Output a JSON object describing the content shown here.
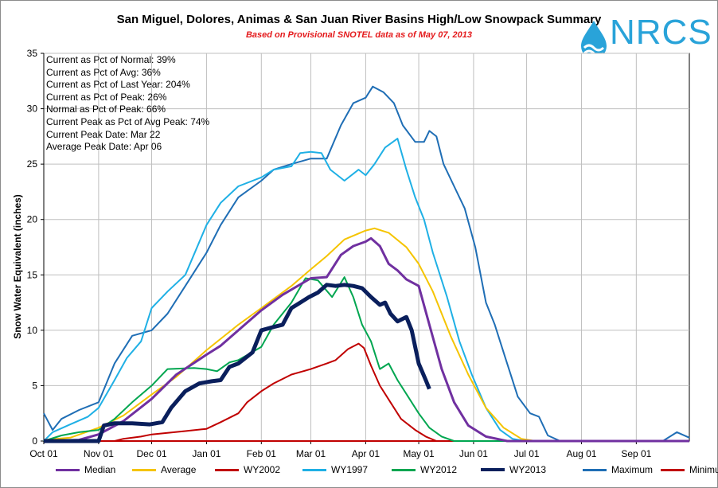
{
  "chart_data": {
    "type": "line",
    "title": "San Miguel, Dolores, Animas & San Juan River Basins High/Low Snowpack Summary",
    "subtitle": "Based on Provisional SNOTEL data as of May 07, 2013",
    "ylabel": "Snow Water Equivalent (inches)",
    "xlabel": "",
    "ylim": [
      0,
      35
    ],
    "yticks": [
      0,
      5,
      10,
      15,
      20,
      25,
      30,
      35
    ],
    "xlim_days": [
      0,
      365
    ],
    "xticks": [
      {
        "label": "Oct 01",
        "day": 0
      },
      {
        "label": "Nov 01",
        "day": 31
      },
      {
        "label": "Dec 01",
        "day": 61
      },
      {
        "label": "Jan 01",
        "day": 92
      },
      {
        "label": "Feb 01",
        "day": 123
      },
      {
        "label": "Mar 01",
        "day": 151
      },
      {
        "label": "Apr 01",
        "day": 182
      },
      {
        "label": "May 01",
        "day": 212
      },
      {
        "label": "Jun 01",
        "day": 243
      },
      {
        "label": "Jul 01",
        "day": 273
      },
      {
        "label": "Aug 01",
        "day": 304
      },
      {
        "label": "Sep 01",
        "day": 335
      }
    ],
    "grid": true,
    "legend_position": "bottom",
    "stats": [
      "Current as Pct of Normal: 39%",
      "Current as Pct of Avg: 36%",
      "Current as Pct of Last Year: 204%",
      "Current as Pct of Peak: 26%",
      "Normal as Pct of Peak: 66%",
      "Current Peak as Pct of Avg Peak: 74%",
      "Current Peak Date: Mar 22",
      "Average Peak Date: Apr 06"
    ],
    "series": [
      {
        "name": "Median",
        "color": "#7030a0",
        "width": 3,
        "points": [
          [
            0,
            0
          ],
          [
            20,
            0.1
          ],
          [
            31,
            0.6
          ],
          [
            45,
            1.8
          ],
          [
            61,
            3.8
          ],
          [
            75,
            6.0
          ],
          [
            92,
            7.8
          ],
          [
            100,
            8.6
          ],
          [
            110,
            10.0
          ],
          [
            123,
            11.8
          ],
          [
            135,
            13.2
          ],
          [
            151,
            14.7
          ],
          [
            160,
            14.8
          ],
          [
            168,
            16.8
          ],
          [
            175,
            17.6
          ],
          [
            182,
            18.0
          ],
          [
            185,
            18.3
          ],
          [
            190,
            17.6
          ],
          [
            195,
            16.0
          ],
          [
            200,
            15.4
          ],
          [
            205,
            14.6
          ],
          [
            212,
            14.0
          ],
          [
            218,
            10.5
          ],
          [
            225,
            6.5
          ],
          [
            232,
            3.5
          ],
          [
            240,
            1.4
          ],
          [
            250,
            0.4
          ],
          [
            262,
            0
          ],
          [
            365,
            0
          ]
        ]
      },
      {
        "name": "Average",
        "color": "#f5c400",
        "width": 2,
        "points": [
          [
            0,
            0.1
          ],
          [
            15,
            0.3
          ],
          [
            31,
            1.2
          ],
          [
            45,
            2.3
          ],
          [
            61,
            4.2
          ],
          [
            75,
            5.8
          ],
          [
            92,
            8.2
          ],
          [
            110,
            10.5
          ],
          [
            123,
            12.0
          ],
          [
            140,
            14.0
          ],
          [
            151,
            15.5
          ],
          [
            160,
            16.7
          ],
          [
            170,
            18.2
          ],
          [
            182,
            19.0
          ],
          [
            187,
            19.2
          ],
          [
            195,
            18.8
          ],
          [
            205,
            17.5
          ],
          [
            212,
            16.0
          ],
          [
            220,
            13.5
          ],
          [
            230,
            9.5
          ],
          [
            240,
            6.0
          ],
          [
            250,
            3.0
          ],
          [
            260,
            1.2
          ],
          [
            270,
            0.2
          ],
          [
            278,
            0
          ],
          [
            365,
            0
          ]
        ]
      },
      {
        "name": "WY2002",
        "color": "#c00000",
        "width": 2,
        "points": [
          [
            0,
            0
          ],
          [
            40,
            0
          ],
          [
            45,
            0.2
          ],
          [
            55,
            0.4
          ],
          [
            61,
            0.6
          ],
          [
            80,
            0.9
          ],
          [
            92,
            1.1
          ],
          [
            100,
            1.7
          ],
          [
            110,
            2.5
          ],
          [
            115,
            3.5
          ],
          [
            123,
            4.5
          ],
          [
            130,
            5.2
          ],
          [
            140,
            6.0
          ],
          [
            151,
            6.5
          ],
          [
            160,
            7.0
          ],
          [
            165,
            7.3
          ],
          [
            172,
            8.3
          ],
          [
            178,
            8.8
          ],
          [
            181,
            8.4
          ],
          [
            185,
            6.8
          ],
          [
            190,
            5.0
          ],
          [
            196,
            3.5
          ],
          [
            202,
            2.0
          ],
          [
            210,
            1.0
          ],
          [
            216,
            0.4
          ],
          [
            222,
            0
          ],
          [
            365,
            0
          ]
        ]
      },
      {
        "name": "WY1997",
        "color": "#1fb0e5",
        "width": 2,
        "points": [
          [
            0,
            0
          ],
          [
            5,
            0.8
          ],
          [
            15,
            1.5
          ],
          [
            25,
            2.2
          ],
          [
            31,
            3.0
          ],
          [
            40,
            5.5
          ],
          [
            47,
            7.5
          ],
          [
            55,
            9.0
          ],
          [
            61,
            12.0
          ],
          [
            70,
            13.5
          ],
          [
            80,
            15.0
          ],
          [
            92,
            19.5
          ],
          [
            100,
            21.5
          ],
          [
            110,
            23.0
          ],
          [
            123,
            23.8
          ],
          [
            130,
            24.5
          ],
          [
            140,
            24.8
          ],
          [
            145,
            26.0
          ],
          [
            151,
            26.1
          ],
          [
            157,
            26.0
          ],
          [
            162,
            24.5
          ],
          [
            170,
            23.5
          ],
          [
            178,
            24.5
          ],
          [
            182,
            24.0
          ],
          [
            187,
            25.0
          ],
          [
            193,
            26.5
          ],
          [
            200,
            27.3
          ],
          [
            205,
            24.5
          ],
          [
            210,
            22.0
          ],
          [
            215,
            20.0
          ],
          [
            220,
            17.0
          ],
          [
            228,
            13.0
          ],
          [
            235,
            9.0
          ],
          [
            242,
            6.0
          ],
          [
            250,
            3.0
          ],
          [
            258,
            1.0
          ],
          [
            265,
            0.2
          ],
          [
            272,
            0
          ],
          [
            365,
            0
          ]
        ]
      },
      {
        "name": "WY2012",
        "color": "#00a650",
        "width": 2,
        "points": [
          [
            0,
            0
          ],
          [
            10,
            0.5
          ],
          [
            20,
            0.8
          ],
          [
            31,
            1.0
          ],
          [
            40,
            2.0
          ],
          [
            50,
            3.5
          ],
          [
            61,
            5.0
          ],
          [
            70,
            6.5
          ],
          [
            85,
            6.6
          ],
          [
            92,
            6.5
          ],
          [
            98,
            6.3
          ],
          [
            105,
            7.1
          ],
          [
            110,
            7.3
          ],
          [
            123,
            8.5
          ],
          [
            130,
            10.5
          ],
          [
            140,
            12.5
          ],
          [
            148,
            14.7
          ],
          [
            155,
            14.5
          ],
          [
            163,
            13.0
          ],
          [
            170,
            14.8
          ],
          [
            175,
            13.0
          ],
          [
            180,
            10.5
          ],
          [
            185,
            9.0
          ],
          [
            190,
            6.5
          ],
          [
            195,
            7.0
          ],
          [
            200,
            5.5
          ],
          [
            206,
            4.0
          ],
          [
            212,
            2.5
          ],
          [
            218,
            1.2
          ],
          [
            225,
            0.4
          ],
          [
            232,
            0
          ],
          [
            365,
            0
          ]
        ]
      },
      {
        "name": "WY2013",
        "color": "#0a1f5c",
        "width": 5,
        "points": [
          [
            0,
            0
          ],
          [
            31,
            0
          ],
          [
            34,
            1.4
          ],
          [
            40,
            1.6
          ],
          [
            50,
            1.6
          ],
          [
            60,
            1.5
          ],
          [
            67,
            1.7
          ],
          [
            72,
            3.0
          ],
          [
            80,
            4.5
          ],
          [
            88,
            5.2
          ],
          [
            95,
            5.4
          ],
          [
            100,
            5.5
          ],
          [
            105,
            6.7
          ],
          [
            110,
            7.0
          ],
          [
            118,
            8.0
          ],
          [
            123,
            10.0
          ],
          [
            130,
            10.3
          ],
          [
            135,
            10.5
          ],
          [
            140,
            12.0
          ],
          [
            145,
            12.5
          ],
          [
            150,
            13.0
          ],
          [
            155,
            13.4
          ],
          [
            160,
            14.1
          ],
          [
            165,
            14.0
          ],
          [
            170,
            14.1
          ],
          [
            175,
            14.0
          ],
          [
            180,
            13.8
          ],
          [
            185,
            13.0
          ],
          [
            190,
            12.3
          ],
          [
            193,
            12.5
          ],
          [
            196,
            11.5
          ],
          [
            200,
            10.8
          ],
          [
            205,
            11.2
          ],
          [
            208,
            10.0
          ],
          [
            212,
            7.0
          ],
          [
            216,
            5.5
          ],
          [
            218,
            4.7
          ]
        ]
      },
      {
        "name": "Maximum",
        "color": "#1f6eb5",
        "width": 2,
        "points": [
          [
            0,
            2.5
          ],
          [
            5,
            1.0
          ],
          [
            10,
            2.0
          ],
          [
            20,
            2.8
          ],
          [
            31,
            3.5
          ],
          [
            40,
            7.0
          ],
          [
            50,
            9.5
          ],
          [
            61,
            10.0
          ],
          [
            70,
            11.5
          ],
          [
            80,
            14.0
          ],
          [
            92,
            17.0
          ],
          [
            100,
            19.5
          ],
          [
            110,
            22.0
          ],
          [
            123,
            23.5
          ],
          [
            130,
            24.5
          ],
          [
            140,
            25.0
          ],
          [
            151,
            25.5
          ],
          [
            160,
            25.5
          ],
          [
            168,
            28.5
          ],
          [
            175,
            30.5
          ],
          [
            182,
            31.0
          ],
          [
            186,
            32.0
          ],
          [
            192,
            31.5
          ],
          [
            198,
            30.5
          ],
          [
            203,
            28.5
          ],
          [
            210,
            27.0
          ],
          [
            215,
            27.0
          ],
          [
            218,
            28.0
          ],
          [
            222,
            27.5
          ],
          [
            226,
            25.0
          ],
          [
            232,
            23.0
          ],
          [
            238,
            21.0
          ],
          [
            244,
            17.5
          ],
          [
            250,
            12.5
          ],
          [
            255,
            10.5
          ],
          [
            262,
            7.0
          ],
          [
            268,
            4.0
          ],
          [
            275,
            2.5
          ],
          [
            280,
            2.2
          ],
          [
            285,
            0.5
          ],
          [
            292,
            0
          ],
          [
            350,
            0
          ],
          [
            358,
            0.8
          ],
          [
            365,
            0.3
          ]
        ]
      },
      {
        "name": "Minimum",
        "color": "#c00000",
        "width": 2,
        "points": [
          [
            0,
            0
          ],
          [
            365,
            0
          ]
        ]
      }
    ]
  }
}
